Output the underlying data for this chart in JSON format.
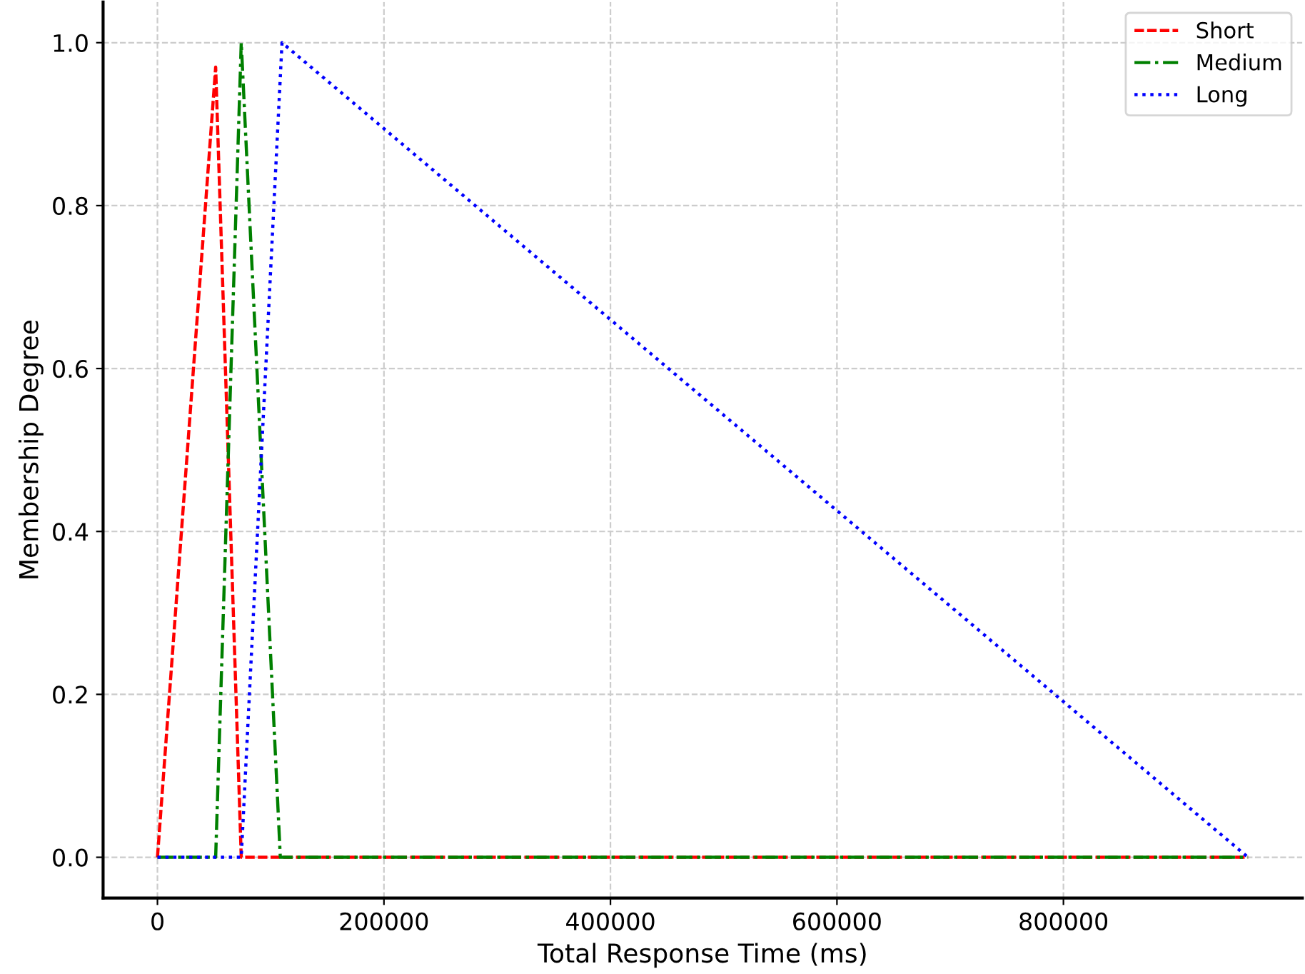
{
  "chart_data": {
    "type": "line",
    "xlabel": "Total Response Time (ms)",
    "ylabel": "Membership Degree",
    "series": [
      {
        "name": "Short",
        "color": "#ff0000",
        "line_style": "dashed",
        "x": [
          0,
          51400,
          74000,
          963000
        ],
        "values": [
          0,
          0.97,
          0,
          0
        ]
      },
      {
        "name": "Medium",
        "color": "#008000",
        "line_style": "dashdot",
        "x": [
          0,
          51400,
          74000,
          108500,
          963000
        ],
        "values": [
          0,
          0,
          1.0,
          0,
          0
        ]
      },
      {
        "name": "Long",
        "color": "#0000ff",
        "line_style": "dotted",
        "x": [
          0,
          74000,
          110000,
          963000
        ],
        "values": [
          0,
          0,
          1.0,
          0
        ]
      }
    ],
    "xlim": [
      -48000,
      1011000
    ],
    "ylim": [
      -0.05,
      1.05
    ],
    "xticks": [
      0,
      200000,
      400000,
      600000,
      800000
    ],
    "yticks": [
      {
        "value": 0,
        "label": "0.0"
      },
      0.2,
      0.4,
      0.6,
      0.8,
      {
        "value": 1,
        "label": "1.0"
      }
    ],
    "grid": true,
    "legend": "top right"
  }
}
